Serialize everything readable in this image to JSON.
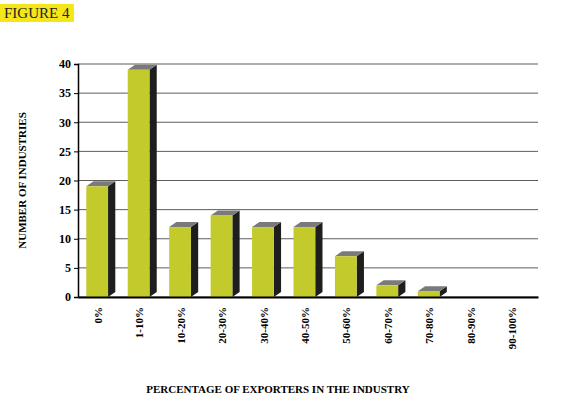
{
  "chart_data": {
    "type": "bar",
    "title": "FIGURE 4",
    "categories": [
      "0%",
      "1-10%",
      "10-20%",
      "20-30%",
      "30-40%",
      "40-50%",
      "50-60%",
      "60-70%",
      "70-80%",
      "80-90%",
      "90-100%"
    ],
    "values": [
      19,
      39,
      12,
      14,
      12,
      12,
      7,
      2,
      1,
      0,
      0
    ],
    "color": "#c2cb2b",
    "x_label": "PERCENTAGE OF EXPORTERS  IN THE INDUSTRY",
    "y_label": "NUMBER OF INDUSTRIES",
    "ylim": [
      0,
      40
    ],
    "yticks": [
      0,
      5,
      10,
      15,
      20,
      25,
      30,
      35,
      40
    ],
    "grid": true
  }
}
